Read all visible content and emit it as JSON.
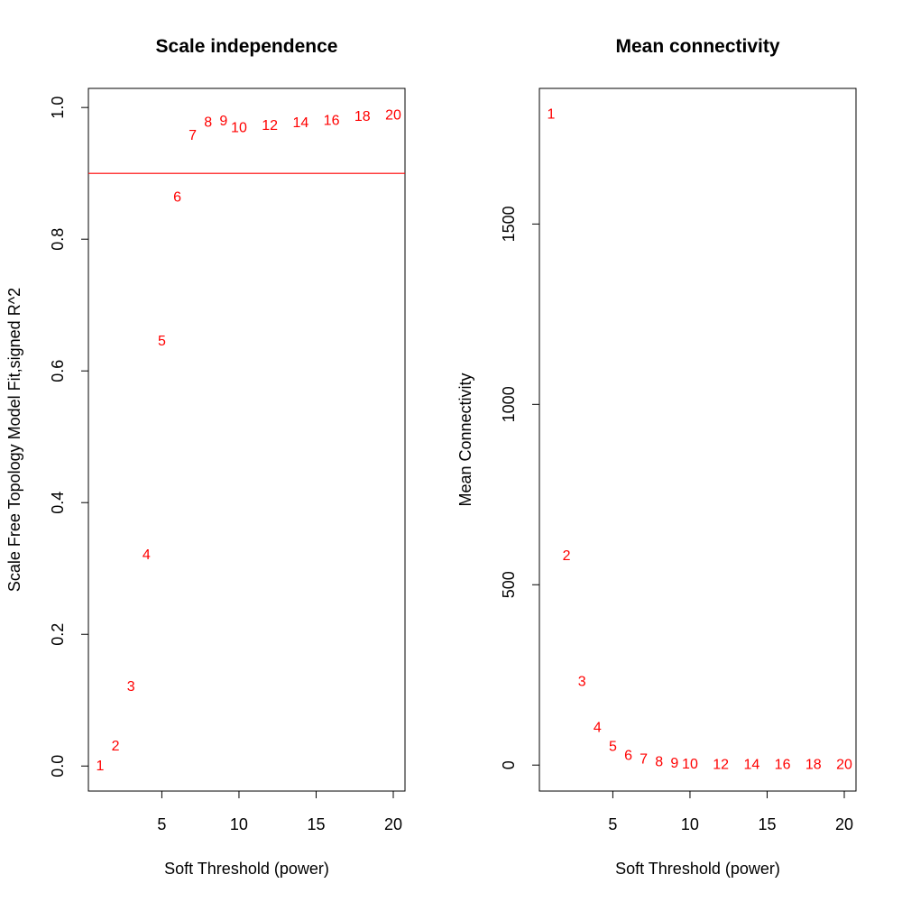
{
  "chart_data": [
    {
      "type": "scatter",
      "title": "Scale independence",
      "xlabel": "Soft Threshold (power)",
      "ylabel": "Scale Free Topology Model Fit,signed R^2",
      "xlim": [
        0.24,
        20.76
      ],
      "ylim": [
        -0.038,
        1.029
      ],
      "x_ticks": [
        5,
        10,
        15,
        20
      ],
      "y_ticks": [
        0.0,
        0.2,
        0.4,
        0.6,
        0.8,
        1.0
      ],
      "y_tick_labels": [
        "0.0",
        "0.2",
        "0.4",
        "0.6",
        "0.8",
        "1.0"
      ],
      "grid": false,
      "marker": "text-labels",
      "point_color": "#ff0000",
      "hline": {
        "y": 0.9,
        "color": "#ff0000"
      },
      "points": [
        {
          "label": "1",
          "x": 1,
          "y": 0.0
        },
        {
          "label": "2",
          "x": 2,
          "y": 0.03
        },
        {
          "label": "3",
          "x": 3,
          "y": 0.12
        },
        {
          "label": "4",
          "x": 4,
          "y": 0.32
        },
        {
          "label": "5",
          "x": 5,
          "y": 0.645
        },
        {
          "label": "6",
          "x": 6,
          "y": 0.863
        },
        {
          "label": "7",
          "x": 7,
          "y": 0.957
        },
        {
          "label": "8",
          "x": 8,
          "y": 0.977
        },
        {
          "label": "9",
          "x": 9,
          "y": 0.979
        },
        {
          "label": "10",
          "x": 10,
          "y": 0.969
        },
        {
          "label": "12",
          "x": 12,
          "y": 0.972
        },
        {
          "label": "14",
          "x": 14,
          "y": 0.976
        },
        {
          "label": "16",
          "x": 16,
          "y": 0.98
        },
        {
          "label": "18",
          "x": 18,
          "y": 0.986
        },
        {
          "label": "20",
          "x": 20,
          "y": 0.988
        }
      ]
    },
    {
      "type": "scatter",
      "title": "Mean connectivity",
      "xlabel": "Soft Threshold (power)",
      "ylabel": "Mean Connectivity",
      "xlim": [
        0.24,
        20.76
      ],
      "ylim": [
        -72,
        1876
      ],
      "x_ticks": [
        5,
        10,
        15,
        20
      ],
      "y_ticks": [
        0,
        500,
        1000,
        1500
      ],
      "y_tick_labels": [
        "0",
        "500",
        "1000",
        "1500"
      ],
      "grid": false,
      "marker": "text-labels",
      "point_color": "#ff0000",
      "points": [
        {
          "label": "1",
          "x": 1,
          "y": 1804
        },
        {
          "label": "2",
          "x": 2,
          "y": 580
        },
        {
          "label": "3",
          "x": 3,
          "y": 230
        },
        {
          "label": "4",
          "x": 4,
          "y": 103
        },
        {
          "label": "5",
          "x": 5,
          "y": 50
        },
        {
          "label": "6",
          "x": 6,
          "y": 26
        },
        {
          "label": "7",
          "x": 7,
          "y": 15
        },
        {
          "label": "8",
          "x": 8,
          "y": 8
        },
        {
          "label": "9",
          "x": 9,
          "y": 4
        },
        {
          "label": "10",
          "x": 10,
          "y": 2
        },
        {
          "label": "12",
          "x": 12,
          "y": 1
        },
        {
          "label": "14",
          "x": 14,
          "y": 0
        },
        {
          "label": "16",
          "x": 16,
          "y": 0
        },
        {
          "label": "18",
          "x": 18,
          "y": 0
        },
        {
          "label": "20",
          "x": 20,
          "y": 0
        }
      ]
    }
  ]
}
